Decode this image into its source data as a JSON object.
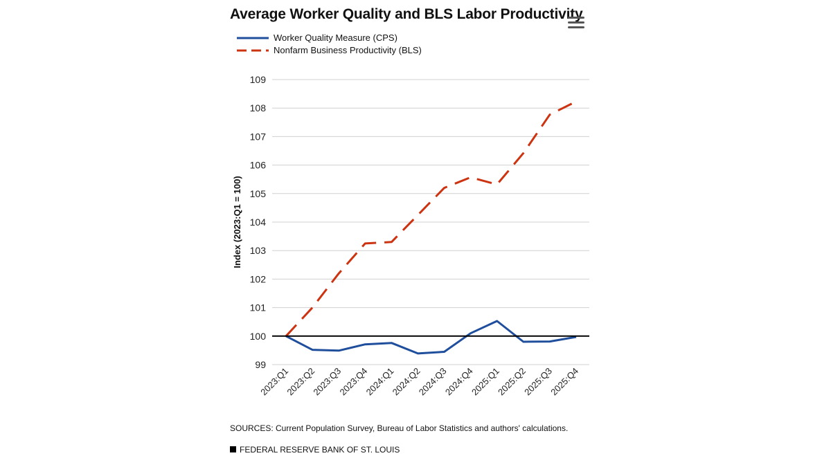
{
  "page": {
    "title": "Average Worker Quality and BLS Labor Productivity",
    "menu_icon": "hamburger-menu-icon",
    "sources": "SOURCES: Current Population Survey, Bureau of Labor Statistics and authors' calculations.",
    "footer": "FEDERAL RESERVE BANK OF ST. LOUIS"
  },
  "chart_data": {
    "type": "line",
    "title": "Average Worker Quality and BLS Labor Productivity",
    "xlabel": "",
    "ylabel": "Index (2023:Q1 = 100)",
    "ylim": [
      99,
      109
    ],
    "yticks": [
      99,
      100,
      101,
      102,
      103,
      104,
      105,
      106,
      107,
      108,
      109
    ],
    "grid": true,
    "legend_position": "top-left",
    "reference_line": 100,
    "categories": [
      "2023:Q1",
      "2023:Q2",
      "2023:Q3",
      "2023:Q4",
      "2024:Q1",
      "2024:Q2",
      "2024:Q3",
      "2024:Q4",
      "2025:Q1",
      "2025:Q2",
      "2025:Q3",
      "2025:Q4"
    ],
    "series": [
      {
        "name": "Worker Quality Measure (CPS)",
        "color": "#1f4e9c",
        "style": "solid",
        "values": [
          100.0,
          99.52,
          99.49,
          99.71,
          99.76,
          99.39,
          99.45,
          100.1,
          100.53,
          99.8,
          99.81,
          99.97
        ]
      },
      {
        "name": "Nonfarm Business Productivity (BLS)",
        "color": "#cc3311",
        "style": "dashed",
        "values": [
          100.0,
          101.0,
          102.2,
          103.25,
          103.3,
          104.25,
          105.2,
          105.57,
          105.32,
          106.42,
          107.77,
          108.23
        ]
      }
    ]
  }
}
